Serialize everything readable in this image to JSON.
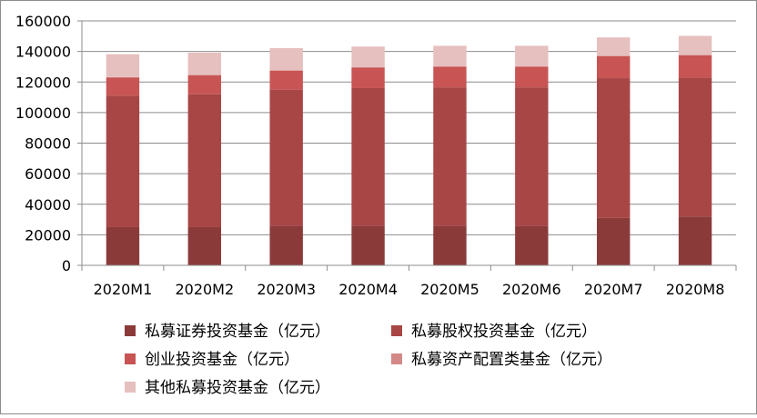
{
  "chart_data": {
    "type": "stacked-bar",
    "title": "",
    "xlabel": "",
    "ylabel": "",
    "ylim": [
      0,
      160000
    ],
    "yticks": [
      0,
      20000,
      40000,
      60000,
      80000,
      100000,
      120000,
      140000,
      160000
    ],
    "gridlines": true,
    "legend_position": "bottom",
    "categories": [
      "2020M1",
      "2020M2",
      "2020M3",
      "2020M4",
      "2020M5",
      "2020M6",
      "2020M7",
      "2020M8"
    ],
    "series": [
      {
        "name": "私募证券投资基金（亿元）",
        "color": "#8b3a3a",
        "values": [
          25000,
          25000,
          26000,
          26000,
          26000,
          26000,
          31000,
          32000
        ]
      },
      {
        "name": "私募股权投资基金（亿元）",
        "color": "#a84545",
        "values": [
          86000,
          87000,
          89000,
          90000,
          90500,
          90500,
          91500,
          91000
        ]
      },
      {
        "name": "创业投资基金（亿元）",
        "color": "#c85454",
        "values": [
          12000,
          12500,
          12500,
          13500,
          13500,
          13500,
          14500,
          14500
        ]
      },
      {
        "name": "私募资产配置类基金（亿元）",
        "color": "#d48888",
        "values": [
          200,
          200,
          200,
          200,
          200,
          200,
          200,
          200
        ]
      },
      {
        "name": "其他私募投资基金（亿元）",
        "color": "#e6bfbf",
        "values": [
          15000,
          14500,
          14500,
          13500,
          13500,
          13500,
          12000,
          12500
        ]
      }
    ]
  }
}
